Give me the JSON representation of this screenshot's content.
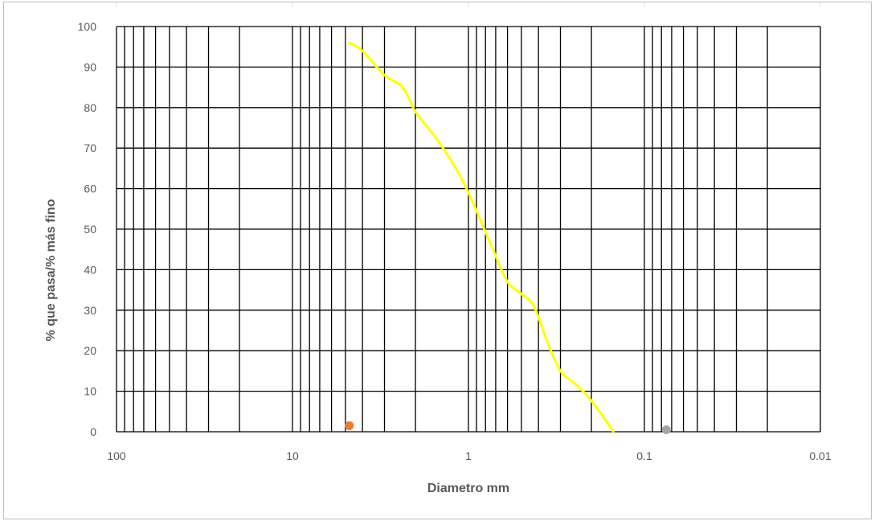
{
  "chart_data": {
    "type": "line",
    "title": "",
    "xlabel": "Diametro mm",
    "ylabel": "% que pasa/% más fino",
    "x_scale": "log",
    "x_reversed": true,
    "xlim": [
      100,
      0.01
    ],
    "ylim": [
      0,
      100
    ],
    "x_ticks": [
      "100",
      "10",
      "1",
      "0.1",
      "0.01"
    ],
    "y_ticks": [
      "0",
      "10",
      "20",
      "30",
      "40",
      "50",
      "60",
      "70",
      "80",
      "90",
      "100"
    ],
    "grid": true,
    "legend": "none",
    "series": [
      {
        "color": "#ffff00",
        "points": [
          {
            "x": 4.75,
            "y": 96
          },
          {
            "x": 4.0,
            "y": 94
          },
          {
            "x": 3.0,
            "y": 88
          },
          {
            "x": 2.36,
            "y": 85
          },
          {
            "x": 2.0,
            "y": 79
          },
          {
            "x": 1.5,
            "y": 72
          },
          {
            "x": 1.18,
            "y": 65
          },
          {
            "x": 1.0,
            "y": 59
          },
          {
            "x": 0.85,
            "y": 52
          },
          {
            "x": 0.71,
            "y": 44
          },
          {
            "x": 0.6,
            "y": 37
          },
          {
            "x": 0.5,
            "y": 34
          },
          {
            "x": 0.425,
            "y": 31
          },
          {
            "x": 0.355,
            "y": 22
          },
          {
            "x": 0.3,
            "y": 15
          },
          {
            "x": 0.25,
            "y": 12
          },
          {
            "x": 0.212,
            "y": 9
          },
          {
            "x": 0.18,
            "y": 5
          },
          {
            "x": 0.15,
            "y": 0
          }
        ]
      },
      {
        "color": "#ed7d31",
        "points": [
          {
            "x": 4.75,
            "y": 1.5
          }
        ]
      },
      {
        "color": "#a5a5a5",
        "points": [
          {
            "x": 0.075,
            "y": 0.5
          }
        ]
      }
    ]
  }
}
